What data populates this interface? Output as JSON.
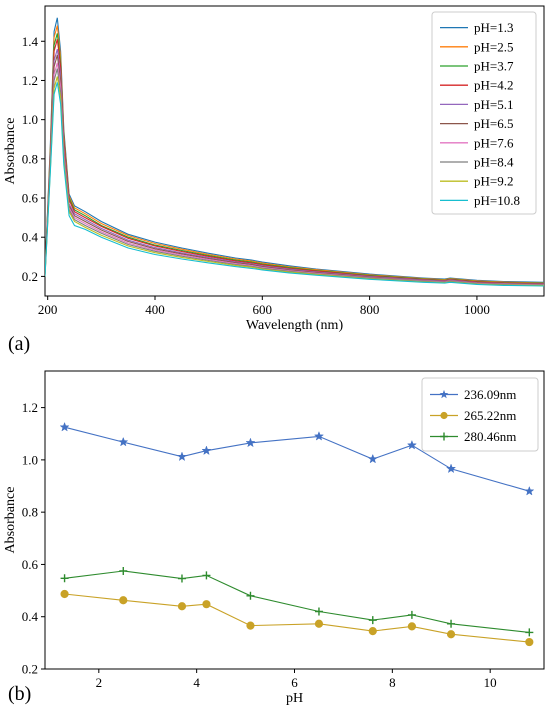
{
  "panels": {
    "a_label": "(a)",
    "b_label": "(b)"
  },
  "chart_data": [
    {
      "type": "line",
      "title": "",
      "xlabel": "Wavelength (nm)",
      "ylabel": "Absorbance",
      "xlim": [
        195,
        1125
      ],
      "ylim": [
        0.1,
        1.58
      ],
      "xticks": [
        200,
        400,
        600,
        800,
        1000
      ],
      "yticks": [
        0.2,
        0.4,
        0.6,
        0.8,
        1.0,
        1.2,
        1.4
      ],
      "grid": false,
      "legend_position": "top-right",
      "x": [
        195,
        205,
        212,
        218,
        224,
        230,
        240,
        250,
        270,
        300,
        350,
        400,
        450,
        500,
        550,
        580,
        600,
        650,
        700,
        800,
        900,
        940,
        950,
        1000,
        1050,
        1125
      ],
      "series": [
        {
          "name": "pH=1.3",
          "color": "#1f77b4",
          "values": [
            0.22,
            0.88,
            1.45,
            1.52,
            1.35,
            0.95,
            0.62,
            0.56,
            0.53,
            0.48,
            0.415,
            0.375,
            0.345,
            0.318,
            0.294,
            0.283,
            0.273,
            0.254,
            0.238,
            0.212,
            0.192,
            0.186,
            0.192,
            0.18,
            0.174,
            0.17
          ]
        },
        {
          "name": "pH=2.5",
          "color": "#ff7f0e",
          "values": [
            0.22,
            0.86,
            1.42,
            1.48,
            1.32,
            0.93,
            0.61,
            0.55,
            0.52,
            0.47,
            0.408,
            0.368,
            0.339,
            0.312,
            0.289,
            0.278,
            0.268,
            0.249,
            0.234,
            0.208,
            0.189,
            0.183,
            0.189,
            0.177,
            0.171,
            0.167
          ]
        },
        {
          "name": "pH=3.7",
          "color": "#2ca02c",
          "values": [
            0.22,
            0.84,
            1.38,
            1.44,
            1.29,
            0.91,
            0.6,
            0.54,
            0.51,
            0.46,
            0.4,
            0.36,
            0.332,
            0.306,
            0.283,
            0.273,
            0.263,
            0.245,
            0.23,
            0.205,
            0.186,
            0.18,
            0.186,
            0.174,
            0.168,
            0.165
          ]
        },
        {
          "name": "pH=4.2",
          "color": "#d62728",
          "values": [
            0.22,
            0.83,
            1.35,
            1.41,
            1.27,
            0.9,
            0.59,
            0.53,
            0.5,
            0.455,
            0.394,
            0.355,
            0.327,
            0.302,
            0.279,
            0.269,
            0.259,
            0.241,
            0.227,
            0.202,
            0.184,
            0.178,
            0.184,
            0.172,
            0.166,
            0.163
          ]
        },
        {
          "name": "pH=5.1",
          "color": "#9467bd",
          "values": [
            0.21,
            0.81,
            1.3,
            1.36,
            1.23,
            0.87,
            0.57,
            0.52,
            0.49,
            0.445,
            0.385,
            0.347,
            0.32,
            0.296,
            0.274,
            0.264,
            0.254,
            0.237,
            0.223,
            0.199,
            0.181,
            0.176,
            0.181,
            0.169,
            0.164,
            0.161
          ]
        },
        {
          "name": "pH=6.5",
          "color": "#8c564b",
          "values": [
            0.21,
            0.8,
            1.27,
            1.33,
            1.2,
            0.85,
            0.56,
            0.51,
            0.48,
            0.437,
            0.378,
            0.341,
            0.315,
            0.291,
            0.27,
            0.26,
            0.25,
            0.233,
            0.22,
            0.196,
            0.179,
            0.174,
            0.179,
            0.167,
            0.162,
            0.159
          ]
        },
        {
          "name": "pH=7.6",
          "color": "#e377c2",
          "values": [
            0.21,
            0.78,
            1.23,
            1.29,
            1.17,
            0.83,
            0.55,
            0.5,
            0.47,
            0.428,
            0.37,
            0.334,
            0.309,
            0.286,
            0.265,
            0.255,
            0.246,
            0.229,
            0.216,
            0.193,
            0.177,
            0.172,
            0.177,
            0.165,
            0.16,
            0.157
          ]
        },
        {
          "name": "pH=8.4",
          "color": "#7f7f7f",
          "values": [
            0.21,
            0.77,
            1.2,
            1.26,
            1.14,
            0.81,
            0.54,
            0.49,
            0.46,
            0.42,
            0.363,
            0.328,
            0.303,
            0.281,
            0.261,
            0.251,
            0.242,
            0.226,
            0.213,
            0.191,
            0.175,
            0.17,
            0.175,
            0.163,
            0.158,
            0.155
          ]
        },
        {
          "name": "pH=9.2",
          "color": "#bcbd22",
          "values": [
            0.2,
            0.75,
            1.16,
            1.22,
            1.11,
            0.79,
            0.53,
            0.48,
            0.45,
            0.41,
            0.355,
            0.321,
            0.297,
            0.276,
            0.256,
            0.247,
            0.238,
            0.222,
            0.21,
            0.188,
            0.172,
            0.168,
            0.172,
            0.161,
            0.156,
            0.153
          ]
        },
        {
          "name": "pH=10.8",
          "color": "#17becf",
          "values": [
            0.2,
            0.74,
            1.13,
            1.19,
            1.08,
            0.77,
            0.51,
            0.46,
            0.44,
            0.4,
            0.345,
            0.312,
            0.289,
            0.269,
            0.25,
            0.241,
            0.233,
            0.218,
            0.206,
            0.185,
            0.17,
            0.166,
            0.17,
            0.159,
            0.154,
            0.151
          ]
        }
      ]
    },
    {
      "type": "line",
      "title": "",
      "xlabel": "pH",
      "ylabel": "Absorbance",
      "xlim": [
        0.9,
        11.1
      ],
      "ylim": [
        0.2,
        1.34
      ],
      "xticks": [
        2,
        4,
        6,
        8,
        10
      ],
      "yticks": [
        0.2,
        0.4,
        0.6,
        0.8,
        1.0,
        1.2
      ],
      "grid": false,
      "legend_position": "top-right",
      "x": [
        1.3,
        2.5,
        3.7,
        4.2,
        5.1,
        6.5,
        7.6,
        8.4,
        9.2,
        10.8
      ],
      "series": [
        {
          "name": "236.09nm",
          "color": "#4472c4",
          "marker": "star",
          "values": [
            1.125,
            1.068,
            1.012,
            1.035,
            1.065,
            1.09,
            1.003,
            1.056,
            0.966,
            0.88
          ]
        },
        {
          "name": "265.22nm",
          "color": "#c9a227",
          "marker": "circle",
          "values": [
            0.487,
            0.463,
            0.44,
            0.448,
            0.366,
            0.373,
            0.345,
            0.363,
            0.333,
            0.303
          ]
        },
        {
          "name": "280.46nm",
          "color": "#2e8b2e",
          "marker": "plus",
          "values": [
            0.547,
            0.575,
            0.546,
            0.558,
            0.48,
            0.42,
            0.387,
            0.407,
            0.373,
            0.34
          ]
        }
      ]
    }
  ]
}
